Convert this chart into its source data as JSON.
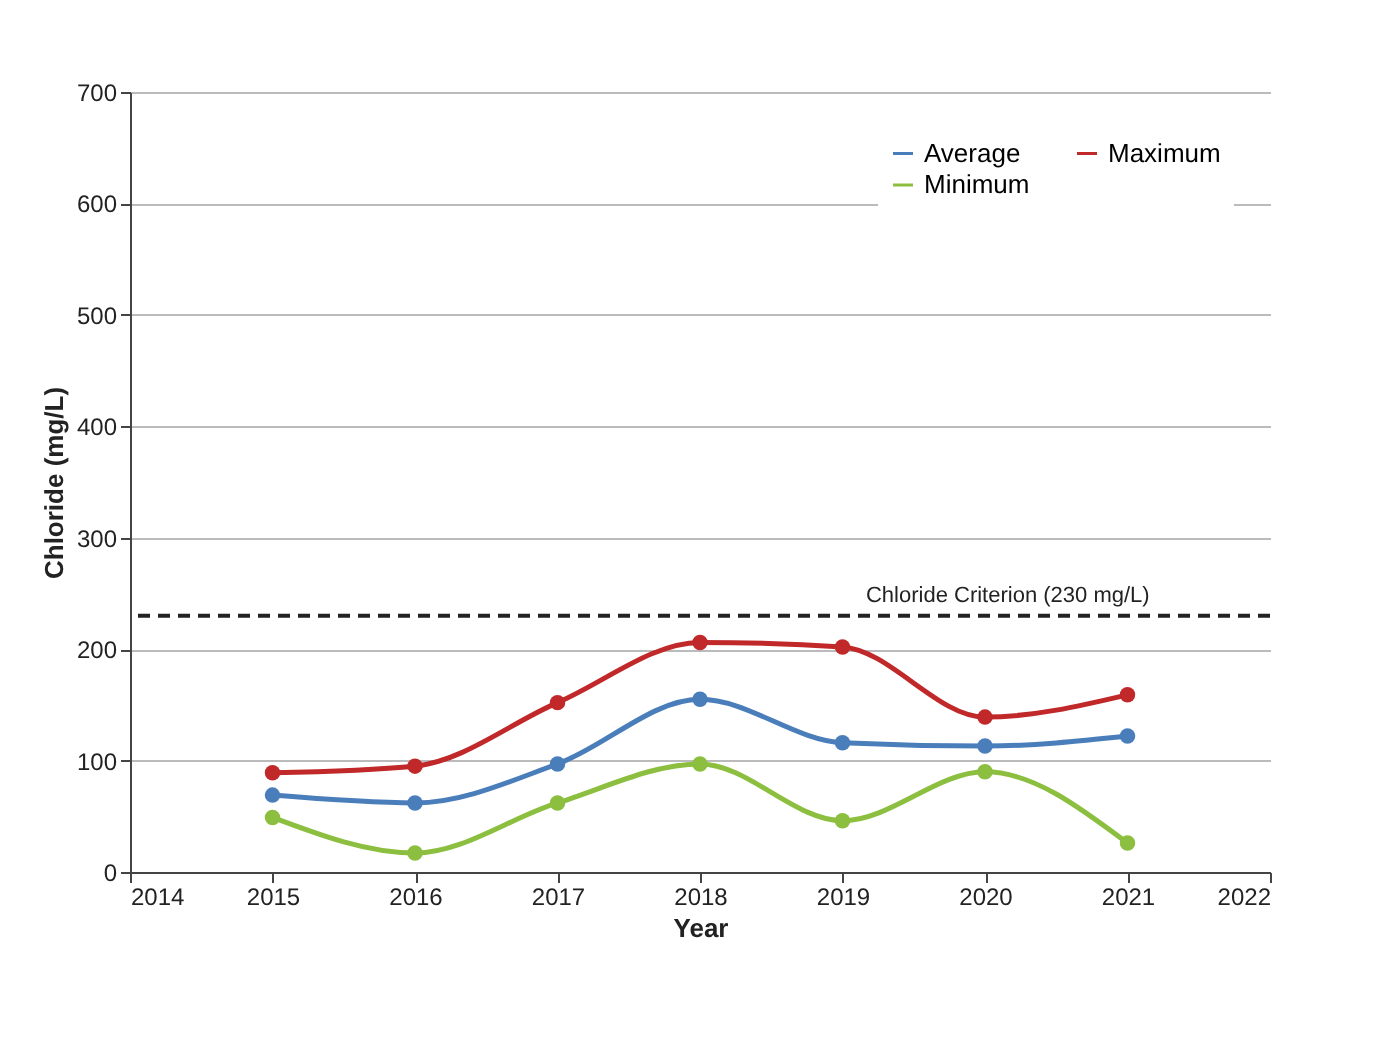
{
  "chart_data": {
    "type": "line",
    "xlabel": "Year",
    "ylabel": "Chloride (mg/L)",
    "x": [
      2015,
      2016,
      2017,
      2018,
      2019,
      2020,
      2021
    ],
    "series": [
      {
        "name": "Average",
        "color": "#4a7ebb",
        "values": [
          69,
          62,
          97,
          155,
          116,
          113,
          122
        ]
      },
      {
        "name": "Minimum",
        "color": "#8cbf3f",
        "values": [
          49,
          17,
          62,
          97,
          46,
          90,
          26
        ]
      },
      {
        "name": "Maximum",
        "color": "#c0282a",
        "values": [
          89,
          95,
          152,
          206,
          202,
          139,
          159
        ]
      }
    ],
    "xlim": [
      2014,
      2022
    ],
    "xticks": [
      2014,
      2015,
      2016,
      2017,
      2018,
      2019,
      2020,
      2021,
      2022
    ],
    "ylim": [
      0,
      700
    ],
    "yticks": [
      0,
      100,
      200,
      300,
      400,
      500,
      600,
      700
    ],
    "ref_lines": [
      {
        "axis": "y",
        "value": 230,
        "label": "Chloride Criterion (230 mg/L)",
        "color": "#222222",
        "line_style": "dashed"
      }
    ],
    "grid": "y",
    "legend": "top right",
    "marker": "circle",
    "line_style": "solid"
  }
}
